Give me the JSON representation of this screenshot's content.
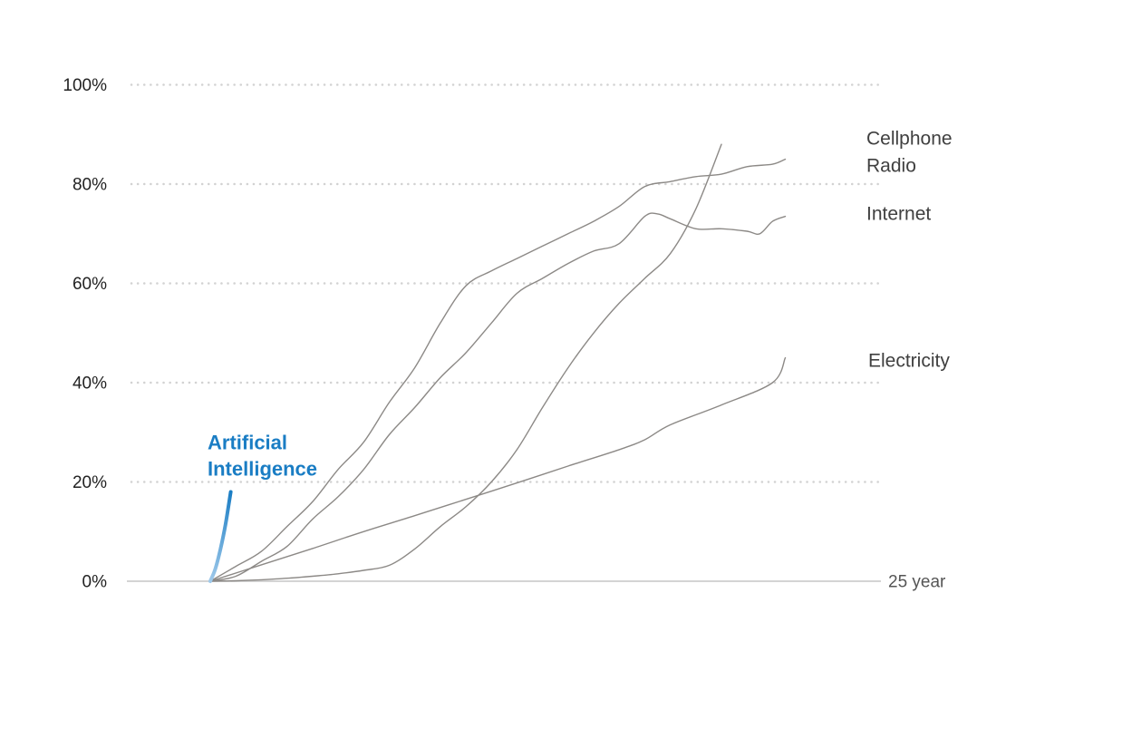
{
  "chart_data": {
    "type": "line",
    "x_end_label": "25 year",
    "xlim": [
      0,
      25
    ],
    "ylim": [
      0,
      100
    ],
    "y_ticks": [
      "0%",
      "20%",
      "40%",
      "60%",
      "80%",
      "100%"
    ],
    "grid": "horizontal dotted",
    "series": [
      {
        "name": "Cellphone",
        "color": "#8c8986",
        "points": [
          [
            0,
            0
          ],
          [
            1,
            0.1
          ],
          [
            2,
            0.3
          ],
          [
            3,
            0.6
          ],
          [
            4,
            1
          ],
          [
            5,
            1.5
          ],
          [
            6,
            2.2
          ],
          [
            7,
            3.2
          ],
          [
            8,
            6.5
          ],
          [
            9,
            11
          ],
          [
            10,
            15
          ],
          [
            11,
            20
          ],
          [
            12,
            26.5
          ],
          [
            13,
            35
          ],
          [
            14,
            43
          ],
          [
            15,
            50
          ],
          [
            16,
            56
          ],
          [
            17,
            61
          ],
          [
            18,
            66
          ],
          [
            19,
            75
          ],
          [
            20,
            88
          ]
        ]
      },
      {
        "name": "Radio",
        "color": "#8c8986",
        "points": [
          [
            0,
            0
          ],
          [
            1,
            3
          ],
          [
            2,
            6
          ],
          [
            3,
            11
          ],
          [
            4,
            16
          ],
          [
            5,
            22.5
          ],
          [
            6,
            28
          ],
          [
            7,
            36
          ],
          [
            8,
            43
          ],
          [
            9,
            52
          ],
          [
            10,
            59.5
          ],
          [
            11,
            62.5
          ],
          [
            12,
            65
          ],
          [
            13,
            67.5
          ],
          [
            14,
            70
          ],
          [
            15,
            72.5
          ],
          [
            16,
            75.5
          ],
          [
            17,
            79.5
          ],
          [
            18,
            80.5
          ],
          [
            19,
            81.5
          ],
          [
            20,
            82
          ],
          [
            21,
            83.5
          ],
          [
            22,
            84
          ],
          [
            22.5,
            85
          ]
        ]
      },
      {
        "name": "Internet",
        "color": "#8c8986",
        "points": [
          [
            0,
            0
          ],
          [
            1,
            1
          ],
          [
            2,
            4
          ],
          [
            3,
            7
          ],
          [
            4,
            12.5
          ],
          [
            5,
            17
          ],
          [
            6,
            22.5
          ],
          [
            7,
            29.5
          ],
          [
            8,
            35
          ],
          [
            9,
            41
          ],
          [
            10,
            46
          ],
          [
            11,
            52
          ],
          [
            12,
            58
          ],
          [
            13,
            61
          ],
          [
            14,
            64
          ],
          [
            15,
            66.5
          ],
          [
            16,
            68
          ],
          [
            17,
            73.5
          ],
          [
            17.5,
            74
          ],
          [
            18,
            73
          ],
          [
            19,
            71
          ],
          [
            20,
            71
          ],
          [
            21,
            70.5
          ],
          [
            21.5,
            70
          ],
          [
            22,
            72.5
          ],
          [
            22.5,
            73.5
          ]
        ]
      },
      {
        "name": "Electricity",
        "color": "#8c8986",
        "points": [
          [
            0,
            0
          ],
          [
            2,
            3.3
          ],
          [
            4,
            6.6
          ],
          [
            6,
            10
          ],
          [
            8,
            13.2
          ],
          [
            10,
            16.5
          ],
          [
            12,
            19.8
          ],
          [
            14,
            23.2
          ],
          [
            16,
            26.5
          ],
          [
            17,
            28.5
          ],
          [
            18,
            31.5
          ],
          [
            20,
            35.5
          ],
          [
            22,
            40
          ],
          [
            22.5,
            45
          ]
        ]
      },
      {
        "name": "Artificial Intelligence",
        "color": "#1a7dc4",
        "points": [
          [
            0,
            0
          ],
          [
            0.2,
            2.5
          ],
          [
            0.4,
            6.5
          ],
          [
            0.6,
            11.5
          ],
          [
            0.8,
            18
          ]
        ]
      }
    ],
    "labels": {
      "cellphone": "Cellphone",
      "radio": "Radio",
      "internet": "Internet",
      "electricity": "Electricity",
      "ai_line1": "Artificial",
      "ai_line2": "Intelligence"
    }
  }
}
